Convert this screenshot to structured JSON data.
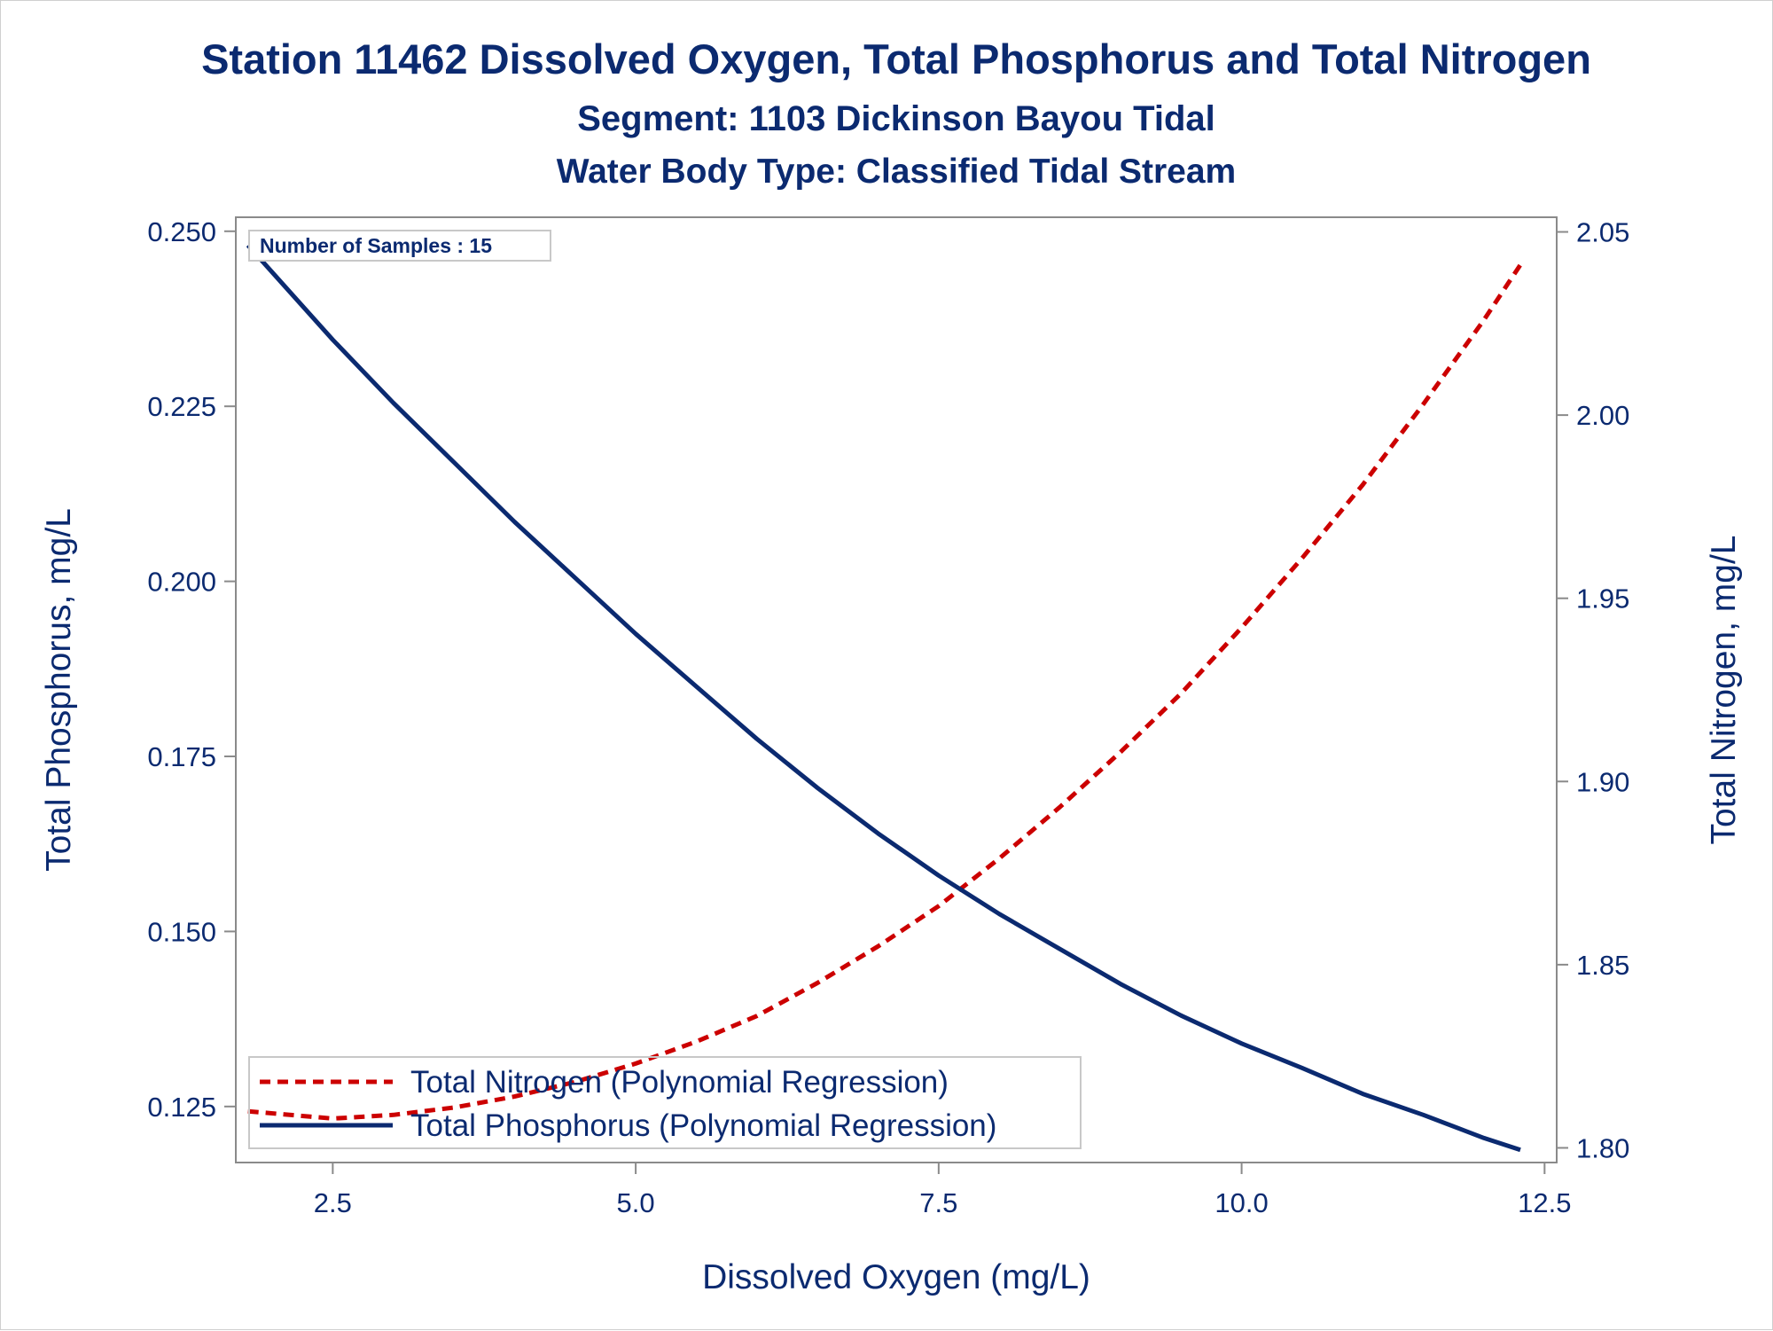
{
  "header": {
    "title": "Station 11462  Dissolved Oxygen, Total Phosphorus and Total Nitrogen",
    "subtitle1": "Segment: 1103  Dickinson Bayou Tidal",
    "subtitle2": "Water Body Type: Classified Tidal Stream"
  },
  "inset": {
    "text": "Number of Samples : 15"
  },
  "legend": {
    "nitrogen_label": "Total Nitrogen (Polynomial Regression)",
    "phosphorus_label": "Total Phosphorus (Polynomial Regression)"
  },
  "colors": {
    "nitrogen": "#cc0000",
    "phosphorus": "#0b2a70",
    "text": "#0b2a70",
    "axis": "#8a8a8a"
  },
  "chart_data": {
    "type": "line",
    "title": "Station 11462  Dissolved Oxygen, Total Phosphorus and Total Nitrogen",
    "xlabel": "Dissolved Oxygen (mg/L)",
    "ylabel_left": "Total Phosphorus, mg/L",
    "ylabel_right": "Total Nitrogen, mg/L",
    "xlim": [
      1.7,
      12.6
    ],
    "ylim_left": [
      0.117,
      0.252
    ],
    "ylim_right": [
      1.796,
      2.054
    ],
    "x_ticks": [
      2.5,
      5.0,
      7.5,
      10.0,
      12.5
    ],
    "x_tick_labels": [
      "2.5",
      "5.0",
      "7.5",
      "10.0",
      "12.5"
    ],
    "y_left_ticks": [
      0.125,
      0.15,
      0.175,
      0.2,
      0.225,
      0.25
    ],
    "y_left_tick_labels": [
      "0.125",
      "0.150",
      "0.175",
      "0.200",
      "0.225",
      "0.250"
    ],
    "y_right_ticks": [
      1.8,
      1.85,
      1.9,
      1.95,
      2.0,
      2.05
    ],
    "y_right_tick_labels": [
      "1.80",
      "1.85",
      "1.90",
      "1.95",
      "2.00",
      "2.05"
    ],
    "legend_position": "bottom-left",
    "grid": false,
    "series": [
      {
        "name": "Total Nitrogen (Polynomial Regression)",
        "axis": "right",
        "style": "dashed",
        "x": [
          1.8,
          2.5,
          3.0,
          3.5,
          4.0,
          4.5,
          5.0,
          5.5,
          6.0,
          6.5,
          7.0,
          7.5,
          8.0,
          8.5,
          9.0,
          9.5,
          10.0,
          10.5,
          11.0,
          11.5,
          12.0,
          12.3
        ],
        "y": [
          1.81,
          1.808,
          1.809,
          1.811,
          1.814,
          1.818,
          1.823,
          1.829,
          1.836,
          1.845,
          1.855,
          1.866,
          1.879,
          1.893,
          1.908,
          1.924,
          1.942,
          1.961,
          1.981,
          2.003,
          2.026,
          2.041
        ]
      },
      {
        "name": "Total Phosphorus (Polynomial Regression)",
        "axis": "left",
        "style": "solid",
        "x": [
          1.8,
          2.5,
          3.0,
          3.5,
          4.0,
          4.5,
          5.0,
          5.5,
          6.0,
          6.5,
          7.0,
          7.5,
          8.0,
          8.5,
          9.0,
          9.5,
          10.0,
          10.5,
          11.0,
          11.5,
          12.0,
          12.3
        ],
        "y": [
          0.248,
          0.2345,
          0.2255,
          0.217,
          0.2085,
          0.2005,
          0.1925,
          0.185,
          0.1775,
          0.1705,
          0.164,
          0.158,
          0.1525,
          0.1475,
          0.1425,
          0.138,
          0.134,
          0.1305,
          0.1268,
          0.1238,
          0.1205,
          0.1188
        ]
      }
    ]
  }
}
